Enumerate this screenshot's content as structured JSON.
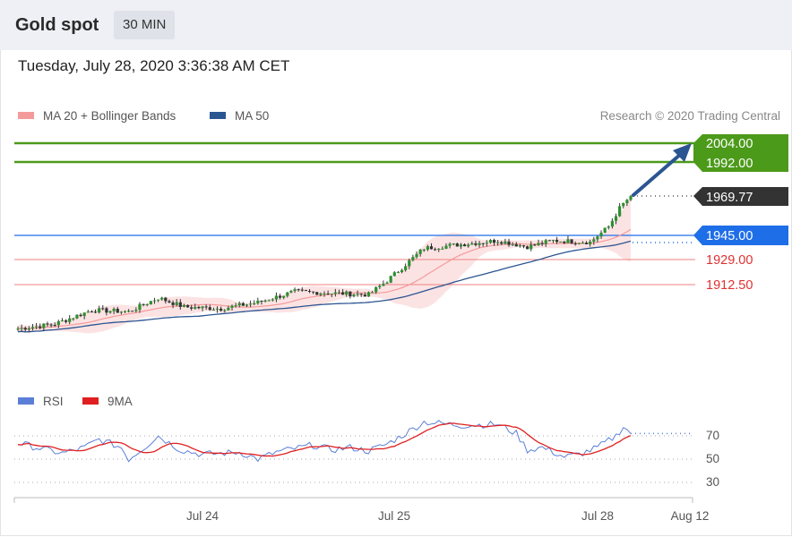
{
  "header": {
    "title": "Gold spot",
    "timeframe": "30 MIN"
  },
  "timestamp": "Tuesday, July 28, 2020 3:36:38 AM CET",
  "legend": {
    "bollinger_label": "MA 20 + Bollinger Bands",
    "ma50_label": "MA 50",
    "credit": "Research © 2020 Trading Central"
  },
  "rsi_legend": {
    "rsi_label": "RSI",
    "ma_label": "9MA"
  },
  "colors": {
    "bollinger": "#f59a9a",
    "ma50": "#2b5591",
    "resistance": "#4c9a1a",
    "pivot": "#1e6ee8",
    "support": "#e03030",
    "current": "#333333",
    "rsi": "#5b7fd6",
    "rsi_ma": "#e02020"
  },
  "levels": {
    "r2": "2004.00",
    "r1": "1992.00",
    "current": "1969.77",
    "pivot": "1945.00",
    "s1": "1929.00",
    "s2": "1912.50"
  },
  "rsi_ticks": [
    "70",
    "50",
    "30"
  ],
  "x_axis": [
    "Jul 24",
    "Jul 25",
    "Jul 28",
    "Aug 12"
  ],
  "chart_data": [
    {
      "type": "candlestick",
      "title": "Gold spot",
      "timeframe": "30 MIN",
      "x_ticks": [
        "Jul 24",
        "Jul 25",
        "Jul 28",
        "Aug 12"
      ],
      "price_anchors": [
        {
          "t": 0,
          "p": 1884
        },
        {
          "t": 10,
          "p": 1887
        },
        {
          "t": 20,
          "p": 1896
        },
        {
          "t": 30,
          "p": 1895
        },
        {
          "t": 38,
          "p": 1904
        },
        {
          "t": 45,
          "p": 1898
        },
        {
          "t": 55,
          "p": 1897
        },
        {
          "t": 65,
          "p": 1901
        },
        {
          "t": 75,
          "p": 1908
        },
        {
          "t": 85,
          "p": 1907
        },
        {
          "t": 95,
          "p": 1906
        },
        {
          "t": 100,
          "p": 1915
        },
        {
          "t": 110,
          "p": 1936
        },
        {
          "t": 118,
          "p": 1938
        },
        {
          "t": 130,
          "p": 1941
        },
        {
          "t": 138,
          "p": 1937
        },
        {
          "t": 145,
          "p": 1941
        },
        {
          "t": 155,
          "p": 1940
        },
        {
          "t": 160,
          "p": 1950
        },
        {
          "t": 163,
          "p": 1962
        },
        {
          "t": 166,
          "p": 1970
        }
      ],
      "series": [
        {
          "name": "MA 20 + Bollinger Bands"
        },
        {
          "name": "MA 50"
        }
      ],
      "horizontal_levels": [
        2004.0,
        1992.0,
        1969.77,
        1945.0,
        1929.0,
        1912.5
      ],
      "target_arrow": {
        "from": 1970,
        "to": 2004
      }
    },
    {
      "type": "line",
      "series": [
        {
          "name": "RSI"
        },
        {
          "name": "9MA"
        }
      ],
      "y_ticks": [
        70,
        50,
        30
      ],
      "rsi_anchors": [
        {
          "t": 0,
          "v": 64
        },
        {
          "t": 5,
          "v": 60
        },
        {
          "t": 12,
          "v": 55
        },
        {
          "t": 18,
          "v": 60
        },
        {
          "t": 22,
          "v": 67
        },
        {
          "t": 28,
          "v": 60
        },
        {
          "t": 30,
          "v": 50
        },
        {
          "t": 35,
          "v": 62
        },
        {
          "t": 38,
          "v": 70
        },
        {
          "t": 44,
          "v": 58
        },
        {
          "t": 50,
          "v": 54
        },
        {
          "t": 60,
          "v": 56
        },
        {
          "t": 65,
          "v": 50
        },
        {
          "t": 70,
          "v": 56
        },
        {
          "t": 80,
          "v": 62
        },
        {
          "t": 85,
          "v": 58
        },
        {
          "t": 90,
          "v": 60
        },
        {
          "t": 95,
          "v": 57
        },
        {
          "t": 100,
          "v": 63
        },
        {
          "t": 105,
          "v": 72
        },
        {
          "t": 110,
          "v": 82
        },
        {
          "t": 120,
          "v": 79
        },
        {
          "t": 130,
          "v": 80
        },
        {
          "t": 135,
          "v": 72
        },
        {
          "t": 138,
          "v": 58
        },
        {
          "t": 142,
          "v": 60
        },
        {
          "t": 148,
          "v": 52
        },
        {
          "t": 152,
          "v": 54
        },
        {
          "t": 157,
          "v": 60
        },
        {
          "t": 162,
          "v": 70
        },
        {
          "t": 164,
          "v": 78
        },
        {
          "t": 166,
          "v": 72
        }
      ]
    }
  ]
}
